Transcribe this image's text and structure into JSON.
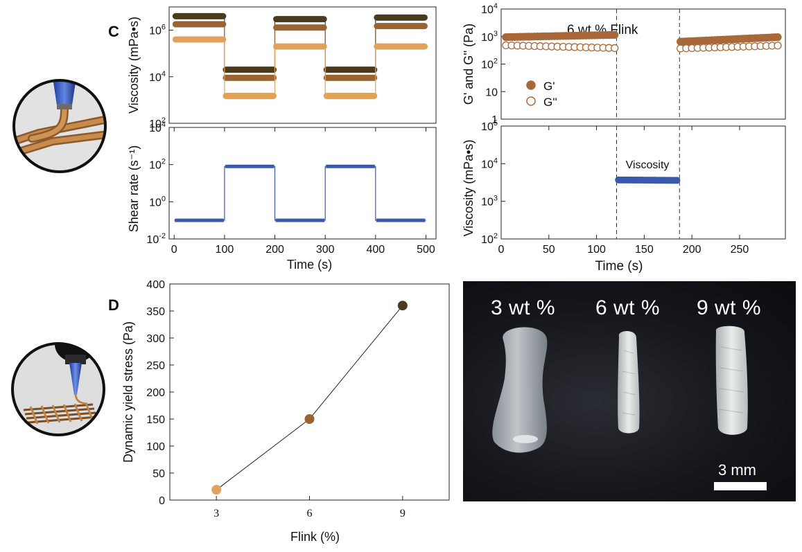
{
  "panel_labels": {
    "c": "C",
    "d": "D"
  },
  "colors": {
    "dark": "#4a3a1e",
    "mid": "#9a6432",
    "light": "#e3a25b",
    "g_prime": "#a9683a",
    "viscosity_blue": "#3a59a8",
    "axis": "#222222"
  },
  "photo": {
    "labels": [
      "3 wt %",
      "6 wt %",
      "9 wt %"
    ],
    "scale_label": "3 mm"
  },
  "chart_data": [
    {
      "id": "C-top-left",
      "type": "line",
      "ylabel": "Viscosity (mPa•s)",
      "yscale": "log",
      "ylim": [
        100,
        10000000
      ],
      "yticks": [
        "10^2",
        "10^4",
        "10^6"
      ],
      "xlim": [
        -10,
        520
      ],
      "grid": false,
      "series": [
        {
          "color": "dark",
          "segments": [
            [
              0,
              100,
              4000000
            ],
            [
              100,
              200,
              20000
            ],
            [
              200,
              300,
              3000000
            ],
            [
              300,
              400,
              20000
            ],
            [
              400,
              500,
              3500000
            ]
          ]
        },
        {
          "color": "mid",
          "segments": [
            [
              0,
              100,
              1800000
            ],
            [
              100,
              200,
              9000
            ],
            [
              200,
              300,
              1300000
            ],
            [
              300,
              400,
              9000
            ],
            [
              400,
              500,
              1500000
            ]
          ]
        },
        {
          "color": "light",
          "segments": [
            [
              0,
              100,
              400000
            ],
            [
              100,
              200,
              1500
            ],
            [
              200,
              300,
              200000
            ],
            [
              300,
              400,
              1500
            ],
            [
              400,
              500,
              200000
            ]
          ]
        }
      ]
    },
    {
      "id": "C-bottom-left",
      "type": "line",
      "xlabel": "Time (s)",
      "ylabel": "Shear rate (s⁻¹)",
      "yscale": "log",
      "ylim": [
        0.01,
        10000
      ],
      "yticks": [
        "10^-2",
        "10^0",
        "10^2",
        "10^4"
      ],
      "xlim": [
        -10,
        520
      ],
      "xticks": [
        0,
        100,
        200,
        300,
        400,
        500
      ],
      "grid": false,
      "series": [
        {
          "color": "viscosity_blue",
          "points": [
            [
              0,
              0.1
            ],
            [
              100,
              0.1
            ],
            [
              100,
              80
            ],
            [
              200,
              80
            ],
            [
              200,
              0.1
            ],
            [
              300,
              0.1
            ],
            [
              300,
              80
            ],
            [
              400,
              80
            ],
            [
              400,
              0.1
            ],
            [
              500,
              0.1
            ]
          ]
        }
      ]
    },
    {
      "id": "C-top-right",
      "type": "scatter",
      "ylabel": "G' and G'' (Pa)",
      "yscale": "log",
      "ylim": [
        1,
        10000
      ],
      "yticks": [
        "1",
        "10",
        "10^2",
        "10^3",
        "10^4"
      ],
      "xlim": [
        0,
        298
      ],
      "annotation": "6 wt % Flink",
      "legend": [
        "G'",
        "G''"
      ],
      "legend_position": "left",
      "vlines": [
        121,
        187
      ],
      "grid": false,
      "series": [
        {
          "name": "G'",
          "marker": "filled",
          "color": "g_prime",
          "x_ranges": [
            [
              5,
              120,
              950,
              1150
            ],
            [
              188,
              290,
              650,
              950
            ]
          ]
        },
        {
          "name": "G''",
          "marker": "open",
          "color": "g_prime",
          "x_ranges": [
            [
              5,
              120,
              480,
              380
            ],
            [
              188,
              290,
              370,
              470
            ]
          ]
        }
      ]
    },
    {
      "id": "C-bottom-right",
      "type": "scatter",
      "xlabel": "Time (s)",
      "ylabel": "Viscosity (mPa•s)",
      "yscale": "log",
      "ylim": [
        100,
        100000
      ],
      "yticks": [
        "10^2",
        "10^3",
        "10^4",
        "10^5"
      ],
      "xlim": [
        0,
        298
      ],
      "xticks": [
        0,
        50,
        100,
        150,
        200,
        250
      ],
      "annotation": "Viscosity",
      "vlines": [
        121,
        187
      ],
      "grid": false,
      "series": [
        {
          "name": "Viscosity",
          "marker": "filled",
          "color": "viscosity_blue",
          "x_ranges": [
            [
              123,
              185,
              3700,
              3600
            ]
          ]
        }
      ]
    },
    {
      "id": "D",
      "type": "line",
      "xlabel": "Flink (%)",
      "ylabel": "Dynamic yield stress (Pa)",
      "ylim": [
        0,
        400
      ],
      "yticks": [
        0,
        50,
        100,
        150,
        200,
        250,
        300,
        350,
        400
      ],
      "xlim": [
        1.5,
        10.5
      ],
      "xticks": [
        3,
        6,
        9
      ],
      "grid": false,
      "series": [
        {
          "points": [
            [
              3,
              19,
              "light"
            ],
            [
              6,
              150,
              "mid"
            ],
            [
              9,
              360,
              "dark"
            ]
          ]
        }
      ]
    }
  ]
}
